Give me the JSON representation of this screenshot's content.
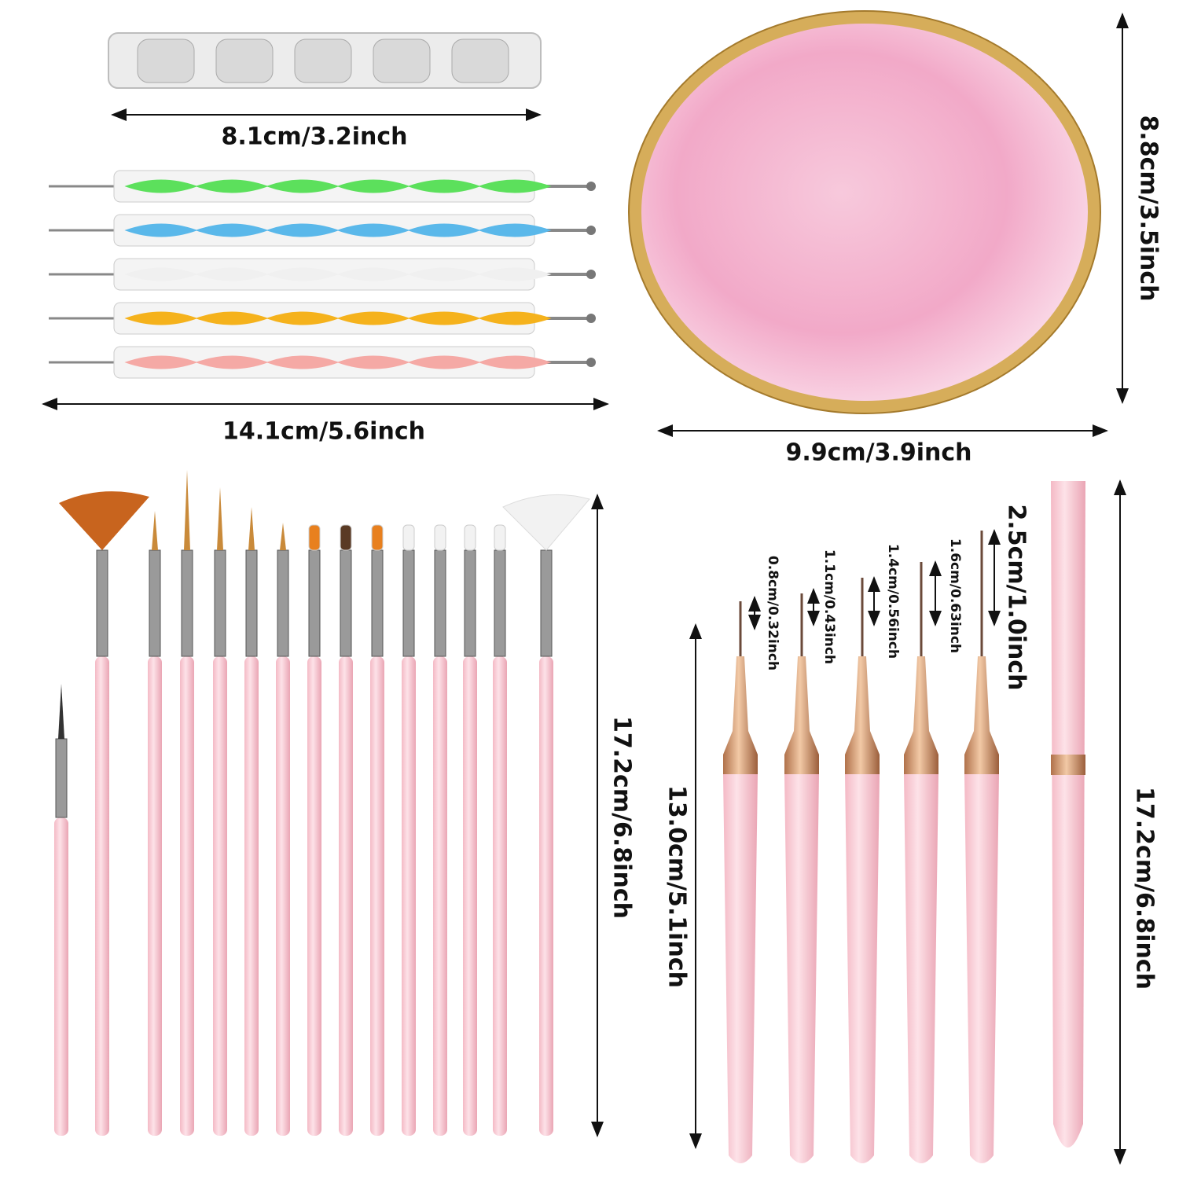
{
  "holder": {
    "width_label": "8.1cm/3.2inch"
  },
  "dotting_tools": {
    "length_label": "14.1cm/5.6inch"
  },
  "palette": {
    "height_label": "8.8cm/3.5inch",
    "width_label": "9.9cm/3.9inch"
  },
  "brush_set": {
    "length_label": "17.2cm/6.8inch"
  },
  "liner_brushes": {
    "length_label": "13.0cm/5.1inch",
    "tip_labels": [
      "0.8cm/0.32inch",
      "1.1cm/0.43inch",
      "1.4cm/0.56inch",
      "1.6cm/0.63inch",
      "2.5cm/1.0inch"
    ],
    "pen_length_label": "17.2cm/6.8inch"
  }
}
